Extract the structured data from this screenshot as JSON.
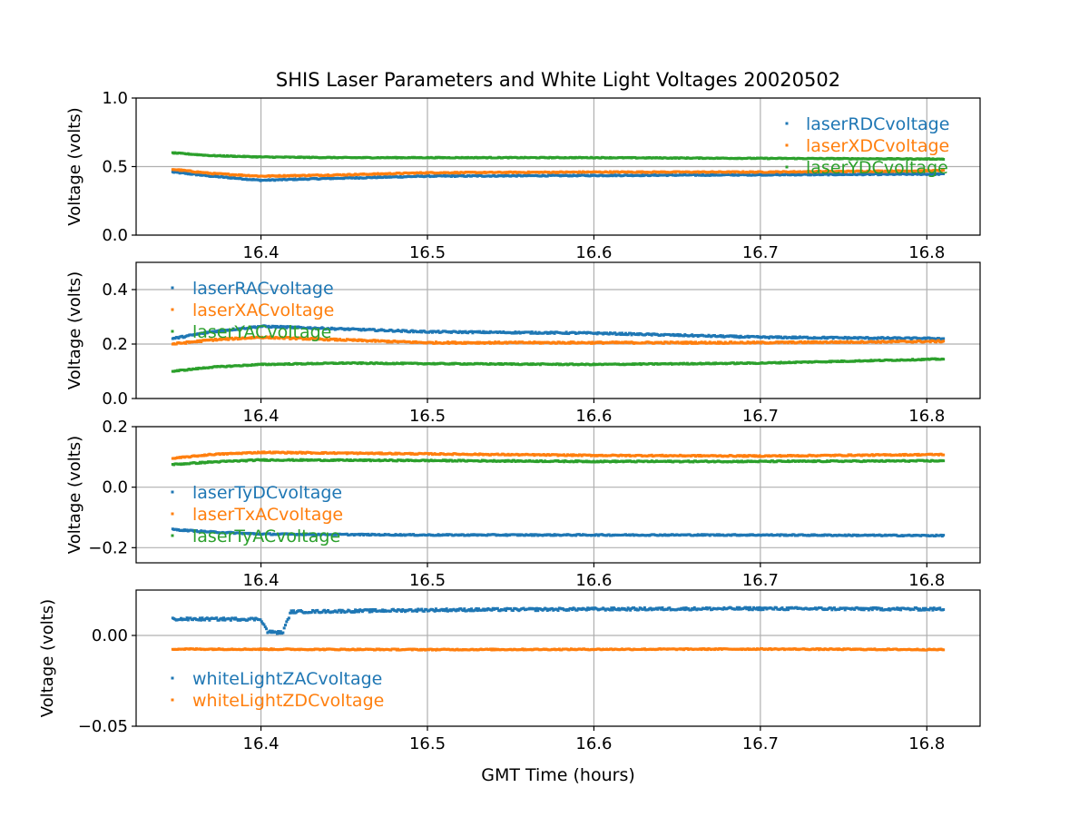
{
  "chart_data": {
    "type": "scatter",
    "title": "SHIS Laser Parameters and White Light Voltages 20020502",
    "xlabel": "GMT Time (hours)",
    "xlim": [
      16.325,
      16.832
    ],
    "xticks": [
      16.4,
      16.5,
      16.6,
      16.7,
      16.8
    ],
    "xtick_labels": [
      "16.4",
      "16.5",
      "16.6",
      "16.7",
      "16.8"
    ],
    "grid": true,
    "colors": {
      "blue": "#1f77b4",
      "orange": "#ff7f0e",
      "green": "#2ca02c"
    },
    "panels": [
      {
        "ylabel": "Voltage (volts)",
        "ylim": [
          0.0,
          1.0
        ],
        "yticks": [
          0.0,
          0.5,
          1.0
        ],
        "ytick_labels": [
          "0.0",
          "0.5",
          "1.0"
        ],
        "legend": "upper-right",
        "series": [
          {
            "name": "laserRDCvoltage",
            "color": "#1f77b4",
            "noise": 0.004,
            "points": [
              [
                16.347,
                0.46
              ],
              [
                16.37,
                0.43
              ],
              [
                16.4,
                0.4
              ],
              [
                16.43,
                0.41
              ],
              [
                16.5,
                0.43
              ],
              [
                16.6,
                0.435
              ],
              [
                16.7,
                0.44
              ],
              [
                16.81,
                0.445
              ]
            ]
          },
          {
            "name": "laserXDCvoltage",
            "color": "#ff7f0e",
            "noise": 0.004,
            "points": [
              [
                16.347,
                0.48
              ],
              [
                16.37,
                0.45
              ],
              [
                16.4,
                0.43
              ],
              [
                16.45,
                0.44
              ],
              [
                16.5,
                0.455
              ],
              [
                16.6,
                0.46
              ],
              [
                16.7,
                0.46
              ],
              [
                16.81,
                0.47
              ]
            ]
          },
          {
            "name": "laserYDCvoltage",
            "color": "#2ca02c",
            "noise": 0.003,
            "points": [
              [
                16.347,
                0.6
              ],
              [
                16.37,
                0.58
              ],
              [
                16.4,
                0.57
              ],
              [
                16.45,
                0.565
              ],
              [
                16.5,
                0.565
              ],
              [
                16.6,
                0.565
              ],
              [
                16.7,
                0.56
              ],
              [
                16.81,
                0.555
              ]
            ]
          }
        ]
      },
      {
        "ylabel": "Voltage (volts)",
        "ylim": [
          0.0,
          0.5
        ],
        "yticks": [
          0.0,
          0.2,
          0.4
        ],
        "ytick_labels": [
          "0.0",
          "0.2",
          "0.4"
        ],
        "legend": "upper-left",
        "series": [
          {
            "name": "laserRACvoltage",
            "color": "#1f77b4",
            "noise": 0.003,
            "points": [
              [
                16.347,
                0.22
              ],
              [
                16.37,
                0.245
              ],
              [
                16.4,
                0.265
              ],
              [
                16.45,
                0.255
              ],
              [
                16.5,
                0.245
              ],
              [
                16.6,
                0.24
              ],
              [
                16.7,
                0.225
              ],
              [
                16.81,
                0.22
              ]
            ]
          },
          {
            "name": "laserXACvoltage",
            "color": "#ff7f0e",
            "noise": 0.003,
            "points": [
              [
                16.347,
                0.2
              ],
              [
                16.37,
                0.215
              ],
              [
                16.4,
                0.225
              ],
              [
                16.45,
                0.215
              ],
              [
                16.5,
                0.205
              ],
              [
                16.6,
                0.205
              ],
              [
                16.7,
                0.205
              ],
              [
                16.81,
                0.21
              ]
            ]
          },
          {
            "name": "laserYACvoltage",
            "color": "#2ca02c",
            "noise": 0.002,
            "points": [
              [
                16.347,
                0.1
              ],
              [
                16.37,
                0.115
              ],
              [
                16.4,
                0.125
              ],
              [
                16.45,
                0.13
              ],
              [
                16.5,
                0.128
              ],
              [
                16.6,
                0.125
              ],
              [
                16.7,
                0.13
              ],
              [
                16.81,
                0.145
              ]
            ]
          }
        ]
      },
      {
        "ylabel": "Voltage (volts)",
        "ylim": [
          -0.25,
          0.2
        ],
        "yticks": [
          -0.2,
          0.0,
          0.2
        ],
        "ytick_labels": [
          "−0.2",
          "0.0",
          "0.2"
        ],
        "legend": "center-left",
        "series": [
          {
            "name": "laserTyDCvoltage",
            "color": "#1f77b4",
            "noise": 0.002,
            "points": [
              [
                16.347,
                -0.14
              ],
              [
                16.37,
                -0.148
              ],
              [
                16.4,
                -0.155
              ],
              [
                16.5,
                -0.158
              ],
              [
                16.6,
                -0.158
              ],
              [
                16.7,
                -0.158
              ],
              [
                16.81,
                -0.16
              ]
            ]
          },
          {
            "name": "laserTxACvoltage",
            "color": "#ff7f0e",
            "noise": 0.002,
            "points": [
              [
                16.347,
                0.095
              ],
              [
                16.37,
                0.108
              ],
              [
                16.4,
                0.115
              ],
              [
                16.5,
                0.11
              ],
              [
                16.6,
                0.105
              ],
              [
                16.7,
                0.103
              ],
              [
                16.81,
                0.108
              ]
            ]
          },
          {
            "name": "laserTyACvoltage",
            "color": "#2ca02c",
            "noise": 0.002,
            "points": [
              [
                16.347,
                0.075
              ],
              [
                16.37,
                0.083
              ],
              [
                16.4,
                0.09
              ],
              [
                16.5,
                0.088
              ],
              [
                16.6,
                0.085
              ],
              [
                16.7,
                0.085
              ],
              [
                16.81,
                0.087
              ]
            ]
          }
        ]
      },
      {
        "ylabel": "Voltage (volts)",
        "ylim": [
          -0.05,
          0.025
        ],
        "yticks": [
          -0.05,
          0.0
        ],
        "ytick_labels": [
          "−0.05",
          "0.00"
        ],
        "legend": "center-left",
        "series": [
          {
            "name": "whiteLightZACvoltage",
            "color": "#1f77b4",
            "noise": 0.0007,
            "points": [
              [
                16.347,
                0.009
              ],
              [
                16.4,
                0.009
              ],
              [
                16.404,
                0.002
              ],
              [
                16.413,
                0.0015
              ],
              [
                16.418,
                0.013
              ],
              [
                16.5,
                0.014
              ],
              [
                16.6,
                0.0145
              ],
              [
                16.7,
                0.0148
              ],
              [
                16.81,
                0.0145
              ]
            ]
          },
          {
            "name": "whiteLightZDCvoltage",
            "color": "#ff7f0e",
            "noise": 0.0003,
            "points": [
              [
                16.347,
                -0.0075
              ],
              [
                16.5,
                -0.0078
              ],
              [
                16.7,
                -0.0075
              ],
              [
                16.81,
                -0.0078
              ]
            ]
          }
        ]
      }
    ]
  }
}
